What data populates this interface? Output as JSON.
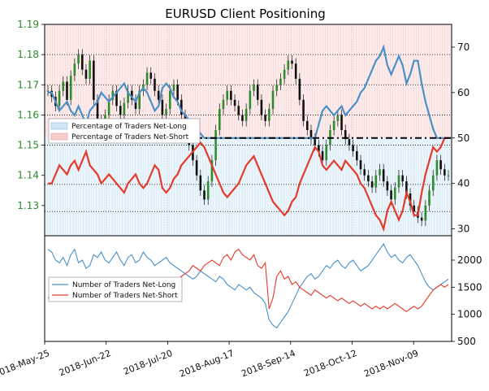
{
  "chart_data": [
    {
      "type": "line",
      "title": "EURUSD Client Positioning",
      "y_left": {
        "ticks": [
          1.13,
          1.14,
          1.15,
          1.16,
          1.17,
          1.18,
          1.19
        ],
        "range": [
          1.12,
          1.19
        ],
        "color": "#2a8a2a"
      },
      "y_right": {
        "ticks": [
          30,
          40,
          50,
          60,
          70
        ],
        "range": [
          28.5,
          75
        ]
      },
      "legend": {
        "placement": "left",
        "entries": [
          "Percentage of Traders Net-Long",
          "Percentage of Traders Net-Short"
        ]
      },
      "reference_lines_right": [
        {
          "value": 50,
          "style": "dashdot"
        }
      ],
      "dotted_gridlines_left": [
        1.128,
        1.137,
        1.15,
        1.16,
        1.17,
        1.18
      ],
      "series": [
        {
          "name": "Percentage of Traders Net-Long",
          "color": "#4a90c8",
          "values": [
            60,
            60,
            58,
            56,
            57,
            58,
            56,
            55,
            57,
            55,
            53,
            56,
            57,
            58,
            60,
            59,
            58,
            59,
            60,
            61,
            62,
            60,
            59,
            58,
            60,
            61,
            60,
            58,
            56,
            57,
            61,
            62,
            61,
            59,
            58,
            56,
            55,
            54,
            53,
            52,
            51,
            50,
            50,
            50,
            50,
            50,
            50,
            50,
            50,
            50,
            50,
            50,
            50,
            50,
            50,
            50,
            50,
            50,
            50,
            50,
            50,
            50,
            50,
            50,
            50,
            50,
            50,
            50,
            50,
            50,
            50,
            53,
            56,
            57,
            56,
            55,
            56,
            57,
            55,
            56,
            57,
            58,
            60,
            61,
            63,
            65,
            67,
            68,
            70,
            66,
            64,
            66,
            68,
            66,
            62,
            64,
            67,
            67,
            62,
            58,
            55,
            52,
            50,
            50,
            50,
            50
          ]
        },
        {
          "name": "Percentage of Traders Net-Short",
          "color": "#e43a2a",
          "values": [
            40,
            40,
            42,
            44,
            43,
            42,
            44,
            45,
            43,
            45,
            47,
            44,
            43,
            42,
            40,
            41,
            42,
            41,
            40,
            39,
            38,
            40,
            41,
            42,
            40,
            39,
            40,
            42,
            44,
            43,
            39,
            38,
            39,
            41,
            42,
            44,
            45,
            46,
            47,
            48,
            49,
            48,
            46,
            44,
            42,
            40,
            38,
            37,
            38,
            39,
            40,
            42,
            44,
            45,
            46,
            44,
            42,
            40,
            38,
            36,
            35,
            34,
            33,
            34,
            36,
            37,
            40,
            42,
            44,
            46,
            48,
            47,
            44,
            43,
            44,
            45,
            44,
            43,
            45,
            44,
            43,
            42,
            40,
            39,
            37,
            35,
            33,
            32,
            30,
            34,
            36,
            34,
            32,
            34,
            38,
            36,
            33,
            33,
            38,
            42,
            45,
            48,
            47,
            48,
            50,
            50
          ]
        }
      ],
      "price_close": [
        1.168,
        1.166,
        1.163,
        1.168,
        1.171,
        1.165,
        1.173,
        1.177,
        1.18,
        1.175,
        1.172,
        1.178,
        1.165,
        1.158,
        1.156,
        1.16,
        1.165,
        1.168,
        1.163,
        1.16,
        1.164,
        1.168,
        1.165,
        1.162,
        1.168,
        1.17,
        1.174,
        1.172,
        1.168,
        1.165,
        1.16,
        1.162,
        1.168,
        1.17,
        1.165,
        1.16,
        1.155,
        1.15,
        1.145,
        1.14,
        1.135,
        1.132,
        1.138,
        1.145,
        1.155,
        1.162,
        1.165,
        1.168,
        1.165,
        1.163,
        1.16,
        1.158,
        1.162,
        1.168,
        1.17,
        1.165,
        1.16,
        1.158,
        1.162,
        1.168,
        1.17,
        1.172,
        1.175,
        1.178,
        1.177,
        1.172,
        1.165,
        1.158,
        1.155,
        1.152,
        1.15,
        1.148,
        1.145,
        1.15,
        1.155,
        1.158,
        1.16,
        1.155,
        1.152,
        1.15,
        1.148,
        1.145,
        1.142,
        1.14,
        1.138,
        1.136,
        1.14,
        1.142,
        1.138,
        1.135,
        1.132,
        1.136,
        1.14,
        1.138,
        1.134,
        1.13,
        1.128,
        1.126,
        1.125,
        1.13,
        1.135,
        1.14,
        1.145,
        1.142,
        1.14,
        1.14
      ]
    },
    {
      "type": "line",
      "y": {
        "ticks": [
          500,
          1000,
          1500,
          2000
        ],
        "range": [
          500,
          2450
        ]
      },
      "x_ticks": [
        "2018-May-25",
        "2018-Jun-22",
        "2018-Jul-20",
        "2018-Aug-17",
        "2018-Sep-14",
        "2018-Oct-12",
        "2018-Nov-09"
      ],
      "legend": {
        "placement": "left",
        "entries": [
          "Number of Traders Net-Long",
          "Number of Traders Net-Short"
        ]
      },
      "series": [
        {
          "name": "Number of Traders Net-Long",
          "color": "#4a90c8",
          "values": [
            2200,
            2150,
            2000,
            1950,
            2050,
            1900,
            2100,
            2200,
            1950,
            2000,
            1850,
            1900,
            2100,
            2050,
            2150,
            2000,
            1950,
            2050,
            2150,
            2000,
            1900,
            2050,
            2100,
            1950,
            2000,
            2150,
            2050,
            2000,
            1900,
            1950,
            2000,
            2050,
            1950,
            1900,
            1850,
            1800,
            1750,
            1700,
            1650,
            1700,
            1800,
            1750,
            1700,
            1650,
            1600,
            1700,
            1650,
            1550,
            1500,
            1450,
            1550,
            1500,
            1450,
            1500,
            1400,
            1350,
            1300,
            1200,
            900,
            800,
            750,
            850,
            950,
            1050,
            1200,
            1350,
            1500,
            1600,
            1700,
            1750,
            1650,
            1700,
            1800,
            1900,
            1850,
            1950,
            2000,
            1900,
            1850,
            1950,
            2000,
            1900,
            1800,
            1850,
            1900,
            2000,
            2100,
            2200,
            2300,
            2150,
            2050,
            2100,
            2000,
            1950,
            2050,
            2100,
            2000,
            1900,
            1750,
            1600,
            1500,
            1450,
            1500,
            1550,
            1600,
            1650
          ]
        },
        {
          "name": "Number of Traders Net-Short",
          "color": "#e43a2a",
          "values": [
            1300,
            1350,
            1400,
            1500,
            1450,
            1550,
            1400,
            1350,
            1500,
            1450,
            1600,
            1550,
            1450,
            1500,
            1400,
            1550,
            1600,
            1500,
            1450,
            1550,
            1650,
            1500,
            1450,
            1600,
            1550,
            1450,
            1500,
            1600,
            1650,
            1550,
            1500,
            1450,
            1550,
            1600,
            1650,
            1700,
            1750,
            1800,
            1900,
            1850,
            1800,
            1900,
            1950,
            2000,
            1950,
            1900,
            2050,
            2100,
            2000,
            2150,
            2200,
            2100,
            2050,
            2000,
            2100,
            1900,
            1850,
            1950,
            1100,
            1300,
            1700,
            1800,
            1650,
            1700,
            1550,
            1600,
            1500,
            1450,
            1400,
            1350,
            1450,
            1400,
            1350,
            1300,
            1350,
            1300,
            1250,
            1300,
            1250,
            1200,
            1250,
            1200,
            1150,
            1200,
            1150,
            1100,
            1150,
            1100,
            1150,
            1100,
            1150,
            1200,
            1150,
            1100,
            1050,
            1100,
            1150,
            1100,
            1150,
            1250,
            1350,
            1450,
            1500,
            1550,
            1500,
            1550
          ]
        }
      ]
    }
  ]
}
